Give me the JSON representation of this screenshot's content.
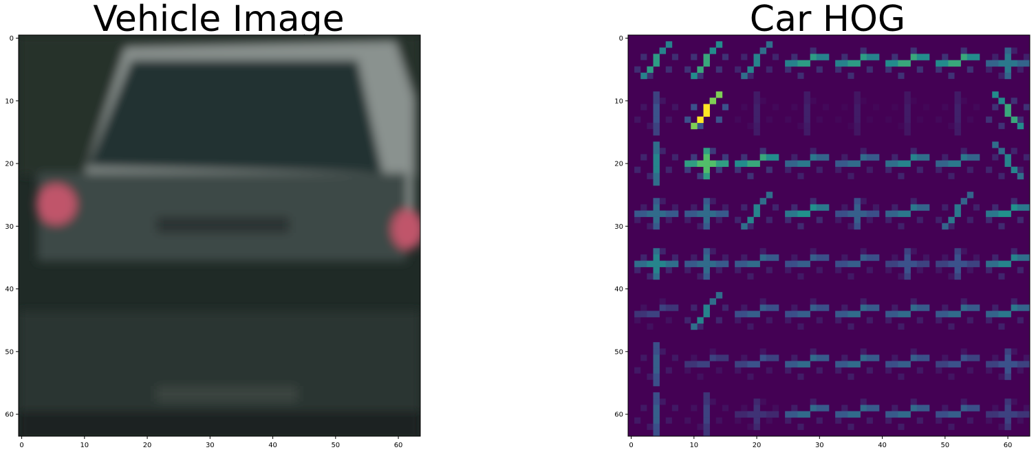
{
  "chart_data": [
    {
      "type": "image",
      "title": "Vehicle Image",
      "xlim": [
        -0.5,
        63.5
      ],
      "ylim": [
        63.5,
        -0.5
      ],
      "xticks": [
        0,
        10,
        20,
        30,
        40,
        50,
        60
      ],
      "yticks": [
        0,
        10,
        20,
        30,
        40,
        50,
        60
      ],
      "colors": {
        "background": "#1f2a26",
        "glass": "#223230",
        "body": "#3c4846",
        "frame": "#8a928f",
        "taillight": "#c0556a",
        "bumper": "#2b3430"
      }
    },
    {
      "type": "heatmap",
      "title": "Car HOG",
      "xlim": [
        -0.5,
        63.5
      ],
      "ylim": [
        63.5,
        -0.5
      ],
      "xticks": [
        0,
        10,
        20,
        30,
        40,
        50,
        60
      ],
      "yticks": [
        0,
        10,
        20,
        30,
        40,
        50,
        60
      ],
      "colormap": "viridis",
      "colors": {
        "low": "#440154",
        "mid": "#3b528b",
        "teal": "#21918c",
        "high": "#5ec962",
        "max": "#fde725"
      },
      "cell_size": 8,
      "grid": [
        8,
        8
      ],
      "cells": [
        [
          [
            "/",
            0.55
          ],
          [
            "/",
            0.6
          ],
          [
            "/",
            0.45
          ],
          [
            "-",
            0.55
          ],
          [
            "-",
            0.55
          ],
          [
            "-",
            0.6
          ],
          [
            "-",
            0.6
          ],
          [
            "x",
            0.4
          ]
        ],
        [
          [
            "|",
            0.25
          ],
          [
            "/",
            1.0
          ],
          [
            "|",
            0.1
          ],
          [
            "|",
            0.1
          ],
          [
            "|",
            0.08
          ],
          [
            "|",
            0.08
          ],
          [
            "|",
            0.1
          ],
          [
            "\\",
            0.6
          ]
        ],
        [
          [
            "|",
            0.45
          ],
          [
            "x",
            0.7
          ],
          [
            "-",
            0.6
          ],
          [
            "-",
            0.4
          ],
          [
            "-",
            0.35
          ],
          [
            "-",
            0.45
          ],
          [
            "-",
            0.4
          ],
          [
            "\\",
            0.45
          ]
        ],
        [
          [
            "x",
            0.35
          ],
          [
            "x",
            0.35
          ],
          [
            "/",
            0.45
          ],
          [
            "-",
            0.5
          ],
          [
            "x",
            0.3
          ],
          [
            "-",
            0.4
          ],
          [
            "/",
            0.4
          ],
          [
            "-",
            0.5
          ]
        ],
        [
          [
            "x",
            0.45
          ],
          [
            "x",
            0.35
          ],
          [
            "-",
            0.35
          ],
          [
            "-",
            0.3
          ],
          [
            "-",
            0.3
          ],
          [
            "x",
            0.25
          ],
          [
            "x",
            0.25
          ],
          [
            "-",
            0.45
          ]
        ],
        [
          [
            "-",
            0.2
          ],
          [
            "/",
            0.45
          ],
          [
            "-",
            0.3
          ],
          [
            "-",
            0.3
          ],
          [
            "-",
            0.35
          ],
          [
            "-",
            0.35
          ],
          [
            "-",
            0.35
          ],
          [
            "-",
            0.4
          ]
        ],
        [
          [
            "|",
            0.3
          ],
          [
            "-",
            0.2
          ],
          [
            "-",
            0.25
          ],
          [
            "-",
            0.35
          ],
          [
            "-",
            0.35
          ],
          [
            "-",
            0.3
          ],
          [
            "-",
            0.25
          ],
          [
            "x",
            0.25
          ]
        ],
        [
          [
            "|",
            0.3
          ],
          [
            "|",
            0.2
          ],
          [
            "x",
            0.15
          ],
          [
            "-",
            0.35
          ],
          [
            "-",
            0.35
          ],
          [
            "-",
            0.35
          ],
          [
            "-",
            0.3
          ],
          [
            "x",
            0.2
          ]
        ]
      ]
    }
  ]
}
